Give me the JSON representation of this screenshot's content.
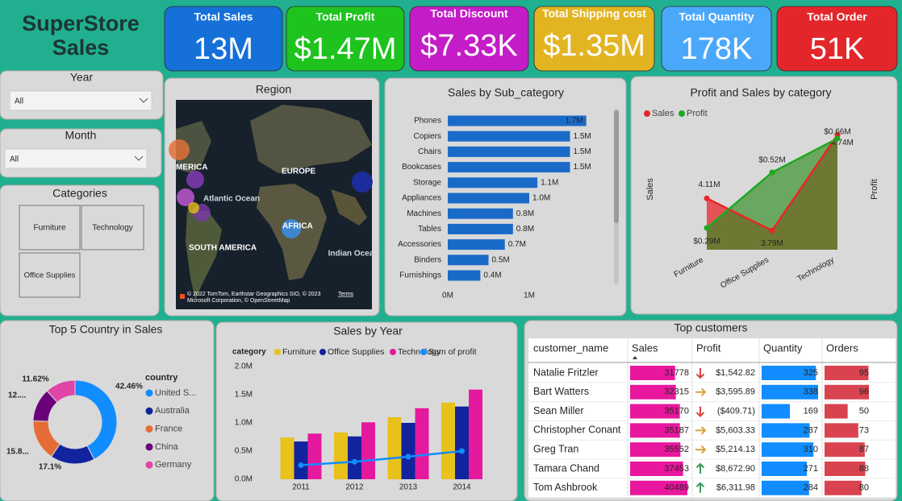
{
  "header": {
    "title": "SuperStore Sales"
  },
  "kpis": [
    {
      "label": "Total Sales",
      "value": "13M",
      "color": "#1570d8"
    },
    {
      "label": "Total Profit",
      "value": "$1.47M",
      "color": "#1ec31e"
    },
    {
      "label": "Total Discount",
      "value": "$7.33K",
      "color": "#c41cc6"
    },
    {
      "label": "Total Shipping cost",
      "value": "$1.35M",
      "color": "#e3b422"
    },
    {
      "label": "Total Quantity",
      "value": "178K",
      "color": "#4aa8fb"
    },
    {
      "label": "Total Order",
      "value": "51K",
      "color": "#e3262a"
    }
  ],
  "filters": [
    {
      "label": "Year",
      "value": "All"
    },
    {
      "label": "Month",
      "value": "All"
    }
  ],
  "category_slicer": {
    "title": "Categories",
    "items": [
      "Furniture",
      "Technology",
      "Office Supplies"
    ]
  },
  "map": {
    "title": "Region",
    "labels": [
      "MERICA",
      "EUROPE",
      "Atlantic Ocean",
      "AFRICA",
      "SOUTH AMERICA",
      "Indian Ocean"
    ],
    "credits": [
      "© 2022 TomTom, Earthstar Geographics SIO, © 2023",
      "Microsoft Corporation, © OpenStreetMap"
    ],
    "terms": "Terms"
  },
  "chart_data": [
    {
      "type": "bar",
      "orientation": "horizontal",
      "title": "Sales by Sub_category",
      "categories": [
        "Phones",
        "Copiers",
        "Chairs",
        "Bookcases",
        "Storage",
        "Appliances",
        "Machines",
        "Tables",
        "Accessories",
        "Binders",
        "Furnishings"
      ],
      "values": [
        1.7,
        1.5,
        1.5,
        1.5,
        1.1,
        1.0,
        0.8,
        0.8,
        0.7,
        0.5,
        0.4
      ],
      "value_labels": [
        "1.7M",
        "1.5M",
        "1.5M",
        "1.5M",
        "1.1M",
        "1.0M",
        "0.8M",
        "0.8M",
        "0.7M",
        "0.5M",
        "0.4M"
      ],
      "color": "#1a6bc8",
      "xlim": [
        0,
        2
      ],
      "xticks": [
        {
          "value": 0,
          "label": "0M"
        },
        {
          "value": 1,
          "label": "1M"
        }
      ]
    },
    {
      "type": "area",
      "title": "Profit and Sales by category",
      "categories": [
        "Furniture",
        "Office Supplies",
        "Technology"
      ],
      "series": [
        {
          "name": "Sales",
          "color": "#e8262a",
          "values": [
            4.11,
            3.79,
            4.74
          ],
          "value_labels": [
            "4.11M",
            "3.79M",
            "4.74M"
          ]
        },
        {
          "name": "Profit",
          "color": "#1fa81f",
          "axis": "y2",
          "values": [
            0.29,
            0.52,
            0.66
          ],
          "value_labels": [
            "$0.29M",
            "$0.52M",
            "$0.66M"
          ]
        }
      ],
      "ylabel": "Sales",
      "y2label": "Profit",
      "ylim": [
        3.6,
        4.8
      ],
      "y2lim": [
        0.2,
        0.7
      ]
    },
    {
      "type": "donut",
      "title": "Top 5 Country in Sales",
      "legend_title": "country",
      "categories": [
        "United S...",
        "Australia",
        "France",
        "China",
        "Germany"
      ],
      "values": [
        42.46,
        17.1,
        15.89,
        12.93,
        11.62
      ],
      "value_labels": [
        "42.46%",
        "17.1%",
        "15.8...",
        "12....",
        "11.62%"
      ],
      "colors": [
        "#118dff",
        "#12239e",
        "#e66c37",
        "#6b007b",
        "#e044a7"
      ]
    },
    {
      "type": "bar",
      "title": "Sales by Year",
      "legend_title": "category",
      "categories": [
        "2011",
        "2012",
        "2013",
        "2014"
      ],
      "series": [
        {
          "name": "Furniture",
          "color": "#e8c11a",
          "values": [
            0.74,
            0.83,
            1.1,
            1.36
          ]
        },
        {
          "name": "Office Supplies",
          "color": "#12239e",
          "values": [
            0.67,
            0.76,
            1.0,
            1.29
          ]
        },
        {
          "name": "Technology",
          "color": "#e5199e",
          "values": [
            0.81,
            1.01,
            1.26,
            1.59
          ]
        },
        {
          "name": "Sum of profit",
          "type": "line",
          "color": "#118dff",
          "values": [
            0.25,
            0.31,
            0.4,
            0.5
          ]
        }
      ],
      "ylim": [
        0,
        2
      ],
      "yticks": [
        {
          "value": 0,
          "label": "0.0M"
        },
        {
          "value": 0.5,
          "label": "0.5M"
        },
        {
          "value": 1,
          "label": "1.0M"
        },
        {
          "value": 1.5,
          "label": "1.5M"
        },
        {
          "value": 2,
          "label": "2.0M"
        }
      ]
    }
  ],
  "table": {
    "title": "Top customers",
    "columns": [
      "customer_name",
      "Sales",
      "Profit",
      "Quantity",
      "Orders"
    ],
    "rows": [
      [
        "Natalie Fritzler",
        31778,
        "$1,542.82",
        325,
        95
      ],
      [
        "Bart Watters",
        32315,
        "$3,595.89",
        338,
        96
      ],
      [
        "Sean Miller",
        35170,
        "($409.71)",
        169,
        50
      ],
      [
        "Christopher Conant",
        35187,
        "$5,603.33",
        287,
        73
      ],
      [
        "Greg Tran",
        35552,
        "$5,214.13",
        310,
        87
      ],
      [
        "Tamara Chand",
        37453,
        "$8,672.90",
        271,
        88
      ],
      [
        "Tom Ashbrook",
        40489,
        "$6,311.98",
        284,
        80
      ]
    ],
    "profit_icons": [
      "down",
      "right",
      "down",
      "right",
      "right",
      "up",
      "up"
    ],
    "bar_colors": [
      "#e8179e",
      "#118dff",
      "#d9434f"
    ]
  }
}
